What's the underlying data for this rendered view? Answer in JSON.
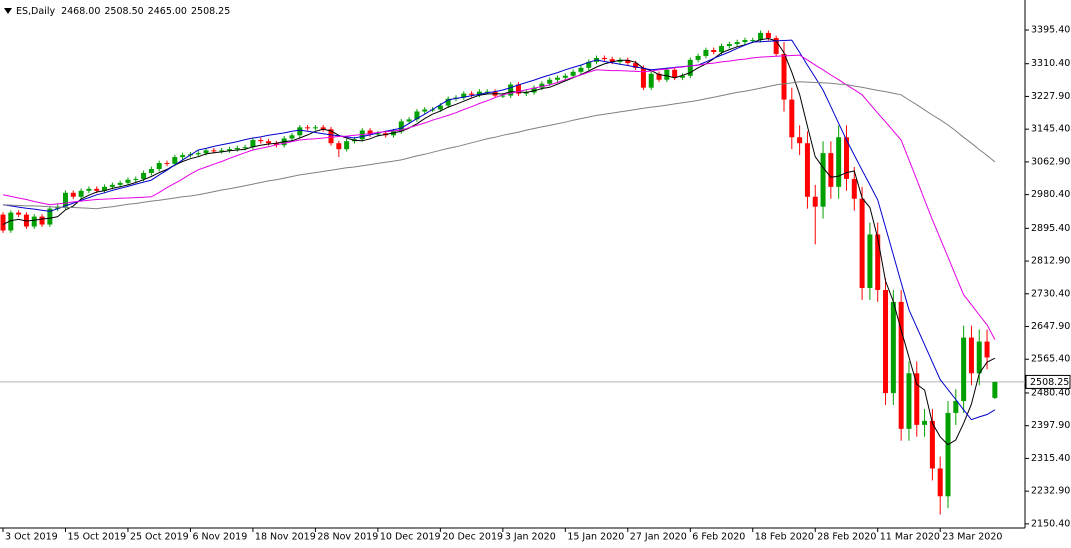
{
  "header": {
    "symbol": "ES,Daily",
    "ohlc": [
      "2468.00",
      "2508.50",
      "2465.00",
      "2508.25"
    ]
  },
  "chart_data": {
    "type": "candlestick",
    "up_color": "#00a000",
    "down_color": "#ff0000",
    "ylim": [
      2140,
      3471
    ],
    "yticks": [
      {
        "value": 3395.4,
        "label": "3395.40"
      },
      {
        "value": 3310.4,
        "label": "3310.40"
      },
      {
        "value": 3227.9,
        "label": "3227.90"
      },
      {
        "value": 3145.4,
        "label": "3145.40"
      },
      {
        "value": 3062.9,
        "label": "3062.90"
      },
      {
        "value": 2980.4,
        "label": "2980.40"
      },
      {
        "value": 2895.4,
        "label": "2895.40"
      },
      {
        "value": 2812.9,
        "label": "2812.90"
      },
      {
        "value": 2730.4,
        "label": "2730.40"
      },
      {
        "value": 2647.9,
        "label": "2647.90"
      },
      {
        "value": 2565.4,
        "label": "2565.40"
      },
      {
        "value": 2480.4,
        "label": "2480.40"
      },
      {
        "value": 2397.9,
        "label": "2397.90"
      },
      {
        "value": 2315.4,
        "label": "2315.40"
      },
      {
        "value": 2232.9,
        "label": "2232.90"
      },
      {
        "value": 2150.4,
        "label": "2150.40"
      }
    ],
    "last_price": {
      "value": 2508.25,
      "label": "2508.25"
    },
    "categories": [
      "3 Oct 2019",
      null,
      null,
      null,
      null,
      null,
      null,
      null,
      "15 Oct 2019",
      null,
      null,
      null,
      null,
      null,
      null,
      null,
      "25 Oct 2019",
      null,
      null,
      null,
      null,
      null,
      null,
      null,
      "6 Nov 2019",
      null,
      null,
      null,
      null,
      null,
      null,
      null,
      "18 Nov 2019",
      null,
      null,
      null,
      null,
      null,
      null,
      null,
      "28 Nov 2019",
      null,
      null,
      null,
      null,
      null,
      null,
      null,
      "10 Dec 2019",
      null,
      null,
      null,
      null,
      null,
      null,
      null,
      "20 Dec 2019",
      null,
      null,
      null,
      null,
      null,
      null,
      null,
      "3 Jan 2020",
      null,
      null,
      null,
      null,
      null,
      null,
      null,
      "15 Jan 2020",
      null,
      null,
      null,
      null,
      null,
      null,
      null,
      "27 Jan 2020",
      null,
      null,
      null,
      null,
      null,
      null,
      null,
      "6 Feb 2020",
      null,
      null,
      null,
      null,
      null,
      null,
      null,
      "18 Feb 2020",
      null,
      null,
      null,
      null,
      null,
      null,
      null,
      "28 Feb 2020",
      null,
      null,
      null,
      null,
      null,
      null,
      null,
      "11 Mar 2020",
      null,
      null,
      null,
      null,
      null,
      null,
      null,
      "23 Mar 2020",
      null,
      null,
      null,
      null,
      null,
      null,
      null
    ],
    "open": [
      2930,
      2890,
      2935,
      2930,
      2900,
      2925,
      2905,
      2945,
      2950,
      2985,
      2975,
      2990,
      2995,
      2990,
      3000,
      3005,
      3010,
      3018,
      3020,
      3035,
      3045,
      3060,
      3058,
      3075,
      3080,
      3082,
      3085,
      3092,
      3090,
      3092,
      3095,
      3098,
      3100,
      3118,
      3115,
      3110,
      3105,
      3122,
      3130,
      3150,
      3148,
      3150,
      3145,
      3110,
      3095,
      3115,
      3120,
      3142,
      3132,
      3135,
      3130,
      3140,
      3165,
      3170,
      3190,
      3195,
      3195,
      3205,
      3222,
      3225,
      3235,
      3232,
      3240,
      3240,
      3230,
      3230,
      3258,
      3235,
      3238,
      3250,
      3260,
      3270,
      3275,
      3280,
      3290,
      3300,
      3315,
      3325,
      3322,
      3315,
      3320,
      3312,
      3300,
      3250,
      3285,
      3270,
      3295,
      3275,
      3280,
      3320,
      3330,
      3345,
      3340,
      3355,
      3360,
      3365,
      3370,
      3370,
      3388,
      3375,
      3335,
      3220,
      3125,
      3110,
      2975,
      2950,
      3085,
      3000,
      3125,
      3020,
      2970,
      2745,
      2880,
      2740,
      2480,
      2710,
      2390,
      2530,
      2400,
      2410,
      2290,
      2220,
      2430,
      2460,
      2620,
      2530,
      2610,
      2468
    ],
    "high": [
      2936,
      2941,
      2941,
      2936,
      2931,
      2931,
      2951,
      2956,
      2991,
      2991,
      2996,
      3001,
      3001,
      3006,
      3011,
      3016,
      3024,
      3026,
      3041,
      3051,
      3066,
      3066,
      3081,
      3086,
      3088,
      3091,
      3098,
      3098,
      3098,
      3101,
      3104,
      3106,
      3124,
      3124,
      3121,
      3116,
      3128,
      3136,
      3156,
      3156,
      3156,
      3156,
      3151,
      3116,
      3121,
      3126,
      3148,
      3148,
      3141,
      3141,
      3146,
      3171,
      3176,
      3196,
      3201,
      3201,
      3211,
      3228,
      3231,
      3241,
      3241,
      3246,
      3246,
      3246,
      3236,
      3264,
      3264,
      3244,
      3256,
      3266,
      3276,
      3281,
      3286,
      3296,
      3306,
      3321,
      3331,
      3331,
      3328,
      3326,
      3326,
      3318,
      3306,
      3291,
      3291,
      3301,
      3301,
      3286,
      3326,
      3336,
      3351,
      3351,
      3361,
      3366,
      3371,
      3376,
      3376,
      3394,
      3394,
      3381,
      3365,
      3250,
      3155,
      3140,
      3005,
      3115,
      3115,
      3155,
      3155,
      3050,
      3000,
      2910,
      2910,
      2770,
      2740,
      2740,
      2560,
      2560,
      2440,
      2440,
      2320,
      2460,
      2490,
      2650,
      2650,
      2640,
      2640,
      2508.5
    ],
    "low": [
      2884,
      2884,
      2924,
      2894,
      2894,
      2899,
      2899,
      2939,
      2944,
      2969,
      2969,
      2984,
      2984,
      2984,
      2994,
      2999,
      3004,
      3012,
      3014,
      3029,
      3039,
      3052,
      3052,
      3069,
      3074,
      3076,
      3079,
      3084,
      3084,
      3086,
      3089,
      3092,
      3094,
      3109,
      3104,
      3099,
      3099,
      3116,
      3124,
      3142,
      3142,
      3139,
      3104,
      3075,
      3089,
      3109,
      3114,
      3126,
      3126,
      3124,
      3124,
      3134,
      3159,
      3164,
      3184,
      3189,
      3189,
      3199,
      3216,
      3219,
      3226,
      3226,
      3234,
      3224,
      3224,
      3224,
      3229,
      3229,
      3232,
      3244,
      3254,
      3264,
      3269,
      3274,
      3284,
      3294,
      3309,
      3316,
      3309,
      3309,
      3306,
      3294,
      3244,
      3244,
      3264,
      3264,
      3269,
      3269,
      3274,
      3314,
      3324,
      3334,
      3334,
      3349,
      3354,
      3359,
      3364,
      3364,
      3369,
      3329,
      3190,
      3095,
      3080,
      2945,
      2855,
      2920,
      2970,
      2970,
      2990,
      2940,
      2715,
      2715,
      2710,
      2450,
      2450,
      2360,
      2360,
      2370,
      2370,
      2260,
      2174,
      2190,
      2400,
      2430,
      2500,
      2500,
      2540,
      2465
    ],
    "close": [
      2890,
      2935,
      2930,
      2900,
      2925,
      2905,
      2945,
      2950,
      2985,
      2975,
      2990,
      2995,
      2990,
      3000,
      3005,
      3010,
      3018,
      3020,
      3035,
      3045,
      3060,
      3058,
      3075,
      3080,
      3082,
      3085,
      3092,
      3090,
      3092,
      3095,
      3098,
      3100,
      3118,
      3115,
      3110,
      3105,
      3122,
      3130,
      3150,
      3148,
      3150,
      3145,
      3110,
      3095,
      3115,
      3120,
      3142,
      3132,
      3135,
      3130,
      3140,
      3165,
      3170,
      3190,
      3195,
      3195,
      3205,
      3222,
      3225,
      3235,
      3232,
      3240,
      3240,
      3230,
      3230,
      3258,
      3235,
      3238,
      3250,
      3260,
      3270,
      3275,
      3280,
      3290,
      3300,
      3315,
      3325,
      3322,
      3315,
      3320,
      3312,
      3300,
      3250,
      3285,
      3270,
      3295,
      3275,
      3280,
      3320,
      3330,
      3345,
      3340,
      3355,
      3360,
      3365,
      3370,
      3370,
      3388,
      3375,
      3335,
      3220,
      3125,
      3110,
      2975,
      2950,
      3085,
      3000,
      3125,
      3020,
      2970,
      2745,
      2880,
      2740,
      2480,
      2710,
      2390,
      2530,
      2400,
      2410,
      2290,
      2220,
      2430,
      2460,
      2620,
      2530,
      2610,
      2570,
      2508.25
    ],
    "moving_averages": [
      {
        "color": "#000000",
        "values": [
          2905,
          2915,
          2918,
          2914,
          2916,
          2919,
          2921,
          2925,
          2942,
          2952,
          2969,
          2979,
          2987,
          2990,
          2996,
          3000,
          3005,
          3011,
          3018,
          3026,
          3036,
          3044,
          3055,
          3064,
          3071,
          3076,
          3083,
          3086,
          3088,
          3091,
          3093,
          3095,
          3101,
          3105,
          3108,
          3110,
          3114,
          3116,
          3123,
          3131,
          3140,
          3145,
          3141,
          3130,
          3123,
          3117,
          3116,
          3121,
          3129,
          3132,
          3136,
          3140,
          3148,
          3159,
          3172,
          3183,
          3191,
          3201,
          3208,
          3216,
          3224,
          3231,
          3234,
          3235,
          3234,
          3240,
          3239,
          3238,
          3242,
          3248,
          3251,
          3259,
          3267,
          3275,
          3283,
          3292,
          3302,
          3310,
          3315,
          3319,
          3319,
          3314,
          3299,
          3293,
          3283,
          3280,
          3275,
          3281,
          3288,
          3300,
          3310,
          3323,
          3338,
          3346,
          3353,
          3358,
          3364,
          3371,
          3374,
          3368,
          3338,
          3289,
          3233,
          3153,
          3076,
          3049,
          3024,
          3027,
          3036,
          3040,
          2972,
          2948,
          2871,
          2763,
          2711,
          2640,
          2570,
          2502,
          2488,
          2404,
          2370,
          2350,
          2362,
          2404,
          2452,
          2530,
          2558,
          2568
        ]
      },
      {
        "color": "#0000cd",
        "values": [
          2955,
          2952,
          2949,
          2946,
          2944,
          2941,
          2938,
          2945,
          2952,
          2959,
          2966,
          2973,
          2980,
          2985,
          2991,
          2996,
          3001,
          3007,
          3012,
          3017,
          3030,
          3042,
          3055,
          3068,
          3080,
          3093,
          3097,
          3102,
          3106,
          3110,
          3114,
          3119,
          3123,
          3126,
          3130,
          3133,
          3136,
          3140,
          3143,
          3140,
          3137,
          3134,
          3131,
          3129,
          3126,
          3123,
          3127,
          3131,
          3136,
          3140,
          3144,
          3148,
          3160,
          3172,
          3183,
          3195,
          3207,
          3219,
          3223,
          3226,
          3230,
          3233,
          3237,
          3240,
          3244,
          3250,
          3257,
          3263,
          3269,
          3276,
          3282,
          3288,
          3295,
          3301,
          3307,
          3314,
          3320,
          3316,
          3313,
          3309,
          3306,
          3302,
          3299,
          3295,
          3297,
          3299,
          3301,
          3303,
          3305,
          3307,
          3315,
          3324,
          3332,
          3340,
          3349,
          3357,
          3365,
          3366,
          3367,
          3368,
          3369,
          3370,
          3339,
          3307,
          3276,
          3244,
          3202,
          3160,
          3118,
          3080,
          3042,
          3005,
          2967,
          2898,
          2829,
          2759,
          2690,
          2646,
          2602,
          2558,
          2514,
          2489,
          2464,
          2438,
          2413,
          2420,
          2426,
          2438
        ]
      },
      {
        "color": "#e600e6",
        "values": [
          2980,
          2976,
          2972,
          2968,
          2963,
          2959,
          2955,
          2957,
          2959,
          2962,
          2964,
          2966,
          2968,
          2969,
          2970,
          2971,
          2972,
          2973,
          2974,
          2975,
          2986,
          2998,
          3009,
          3020,
          3032,
          3043,
          3050,
          3057,
          3064,
          3072,
          3079,
          3086,
          3093,
          3097,
          3101,
          3106,
          3110,
          3114,
          3118,
          3120,
          3121,
          3123,
          3125,
          3127,
          3128,
          3130,
          3132,
          3134,
          3137,
          3139,
          3141,
          3143,
          3149,
          3155,
          3161,
          3168,
          3174,
          3180,
          3187,
          3195,
          3202,
          3210,
          3217,
          3225,
          3232,
          3236,
          3240,
          3245,
          3249,
          3253,
          3257,
          3263,
          3270,
          3276,
          3282,
          3289,
          3295,
          3294,
          3293,
          3293,
          3292,
          3291,
          3290,
          3292,
          3295,
          3297,
          3300,
          3302,
          3305,
          3307,
          3310,
          3312,
          3315,
          3317,
          3320,
          3322,
          3325,
          3327,
          3328,
          3329,
          3330,
          3331,
          3332,
          3320,
          3307,
          3295,
          3282,
          3270,
          3257,
          3245,
          3232,
          3209,
          3186,
          3164,
          3141,
          3118,
          3068,
          3018,
          2967,
          2917,
          2870,
          2823,
          2775,
          2728,
          2703,
          2677,
          2652,
          2615
        ]
      },
      {
        "color": "#808080",
        "values": [
          2955,
          2954,
          2953,
          2952,
          2952,
          2951,
          2950,
          2949,
          2948,
          2948,
          2947,
          2946,
          2945,
          2948,
          2950,
          2953,
          2956,
          2958,
          2961,
          2964,
          2966,
          2969,
          2972,
          2975,
          2977,
          2980,
          2984,
          2988,
          2992,
          2995,
          2999,
          3003,
          3007,
          3011,
          3015,
          3018,
          3022,
          3026,
          3030,
          3033,
          3036,
          3039,
          3042,
          3045,
          3048,
          3050,
          3053,
          3056,
          3059,
          3062,
          3065,
          3068,
          3073,
          3078,
          3082,
          3087,
          3092,
          3097,
          3101,
          3106,
          3111,
          3116,
          3121,
          3125,
          3130,
          3134,
          3138,
          3143,
          3147,
          3151,
          3155,
          3159,
          3163,
          3168,
          3172,
          3176,
          3180,
          3183,
          3186,
          3189,
          3192,
          3195,
          3198,
          3201,
          3203,
          3206,
          3209,
          3212,
          3215,
          3218,
          3222,
          3226,
          3230,
          3234,
          3238,
          3241,
          3245,
          3249,
          3253,
          3257,
          3260,
          3262,
          3265,
          3264,
          3263,
          3262,
          3261,
          3259,
          3258,
          3254,
          3251,
          3247,
          3243,
          3240,
          3236,
          3232,
          3219,
          3207,
          3194,
          3181,
          3169,
          3156,
          3141,
          3125,
          3110,
          3094,
          3079,
          3063
        ]
      }
    ]
  }
}
